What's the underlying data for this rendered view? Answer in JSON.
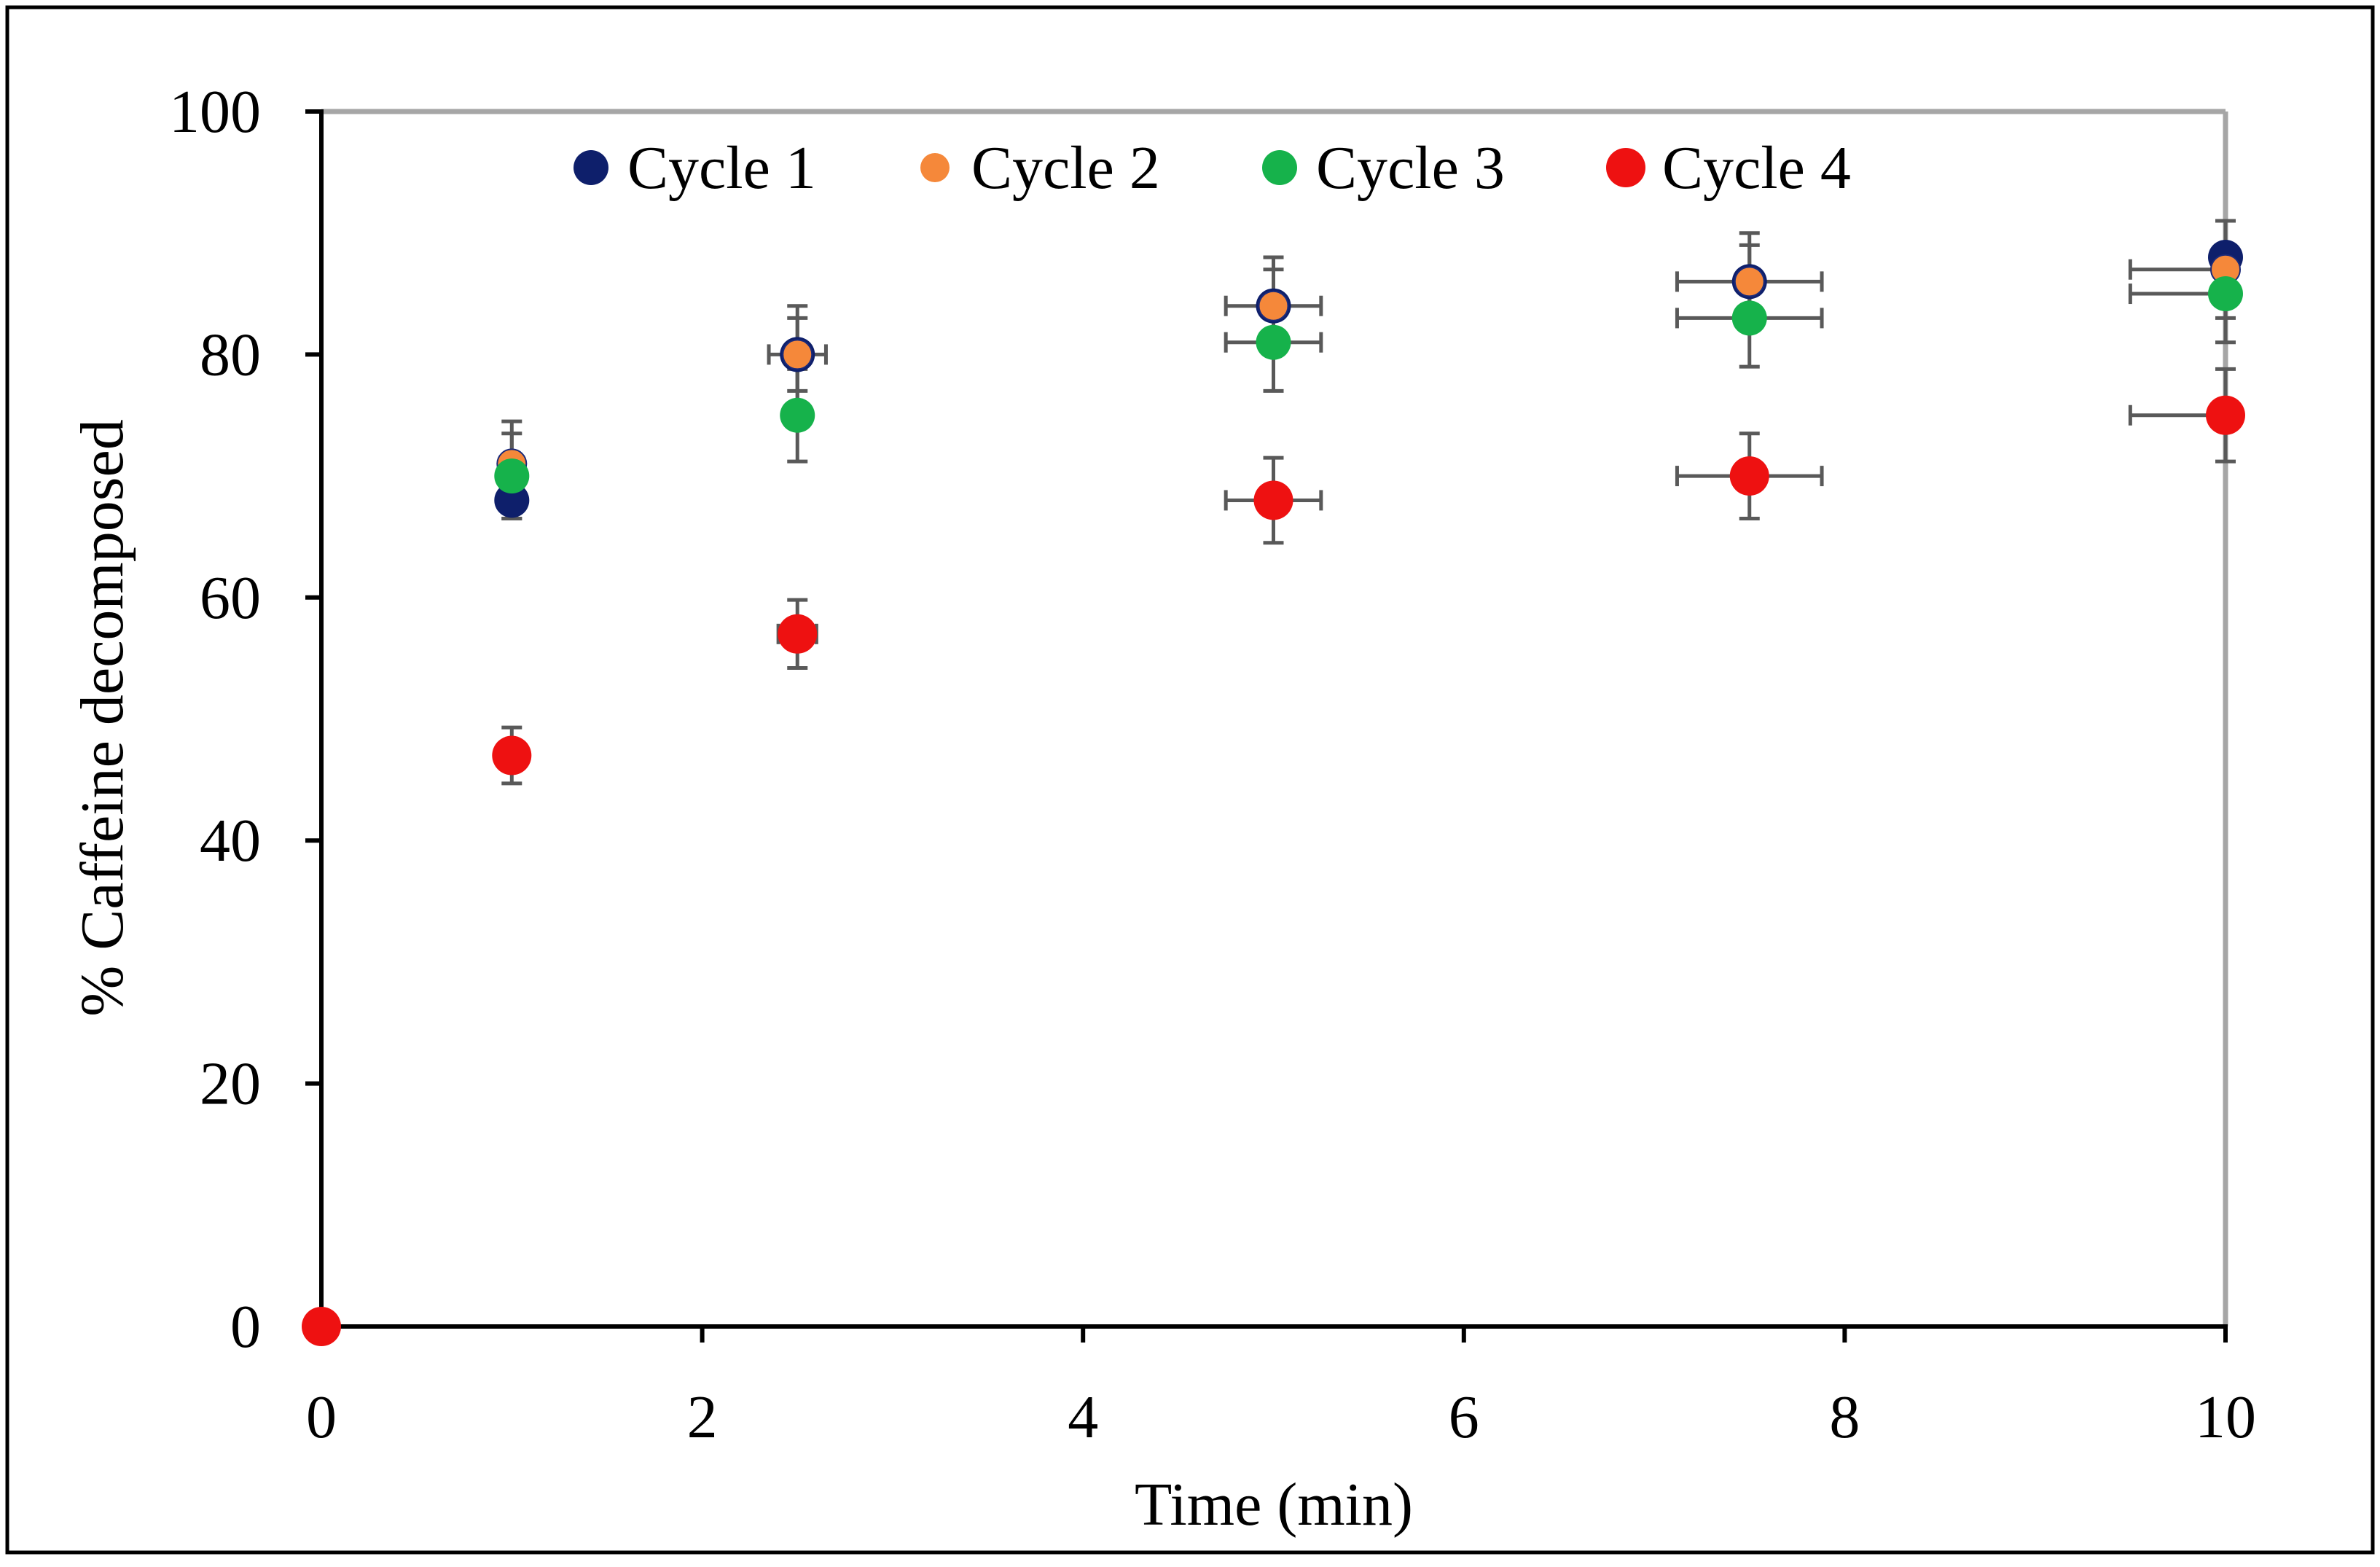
{
  "chart_data": {
    "type": "scatter",
    "title": "",
    "xlabel": "Time (min)",
    "ylabel": "% Caffeine decomposed",
    "xlim": [
      0,
      10
    ],
    "ylim": [
      0,
      100
    ],
    "xticks": [
      0,
      2,
      4,
      6,
      8,
      10
    ],
    "yticks": [
      0,
      20,
      40,
      60,
      80,
      100
    ],
    "xtick_labels": [
      "0",
      "2",
      "4",
      "6",
      "8",
      "10"
    ],
    "ytick_labels": [
      "0",
      "20",
      "40",
      "60",
      "80",
      "100"
    ],
    "grid": false,
    "legend_position": "top",
    "series": [
      {
        "name": "Cycle 1",
        "color": "#0e1f6b",
        "x": [
          0,
          1,
          2.5,
          5,
          7.5,
          10
        ],
        "y": [
          0,
          68,
          80,
          84,
          86,
          88
        ],
        "y_error": [
          0,
          1.5,
          3,
          3,
          3,
          3
        ],
        "x_error": [
          0,
          0,
          0,
          0,
          0,
          0
        ]
      },
      {
        "name": "Cycle 2",
        "color": "#f5883a",
        "x": [
          0,
          1,
          2.5,
          5,
          7.5,
          10
        ],
        "y": [
          0,
          71,
          80,
          84,
          86,
          87
        ],
        "y_error": [
          0,
          3.5,
          4,
          4,
          4,
          4
        ],
        "x_error": [
          0,
          0,
          0.15,
          0.25,
          0.38,
          0.5
        ]
      },
      {
        "name": "Cycle 3",
        "color": "#16b24b",
        "x": [
          0,
          1,
          2.5,
          5,
          7.5,
          10
        ],
        "y": [
          0,
          70,
          75,
          81,
          83,
          85
        ],
        "y_error": [
          0,
          3.5,
          3.8,
          4,
          4,
          4
        ],
        "x_error": [
          0,
          0,
          0,
          0.25,
          0.38,
          0.5
        ]
      },
      {
        "name": "Cycle 4",
        "color": "#ee1111",
        "x": [
          0,
          1,
          2.5,
          5,
          7.5,
          10
        ],
        "y": [
          0,
          47,
          57,
          68,
          70,
          75
        ],
        "y_error": [
          0,
          2.3,
          2.8,
          3.5,
          3.5,
          3.8
        ],
        "x_error": [
          0,
          0,
          0.1,
          0.25,
          0.38,
          0.5
        ]
      }
    ]
  }
}
